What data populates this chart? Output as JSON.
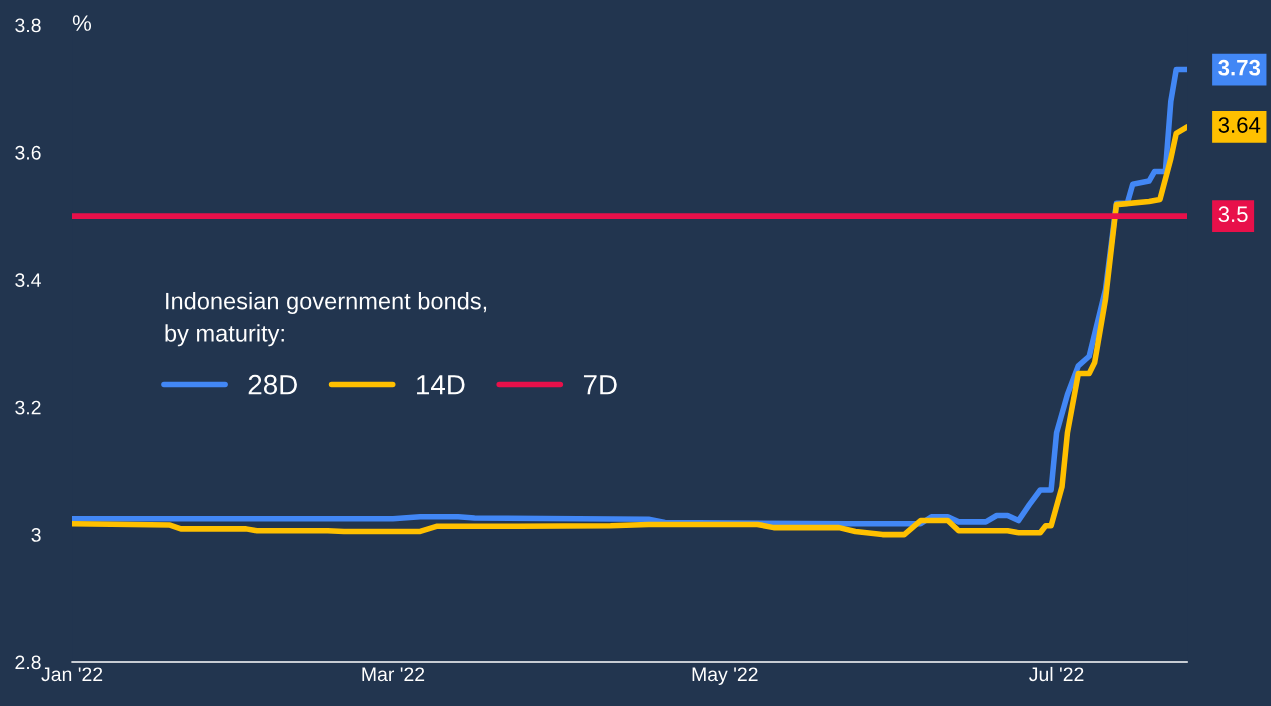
{
  "chart_data": {
    "type": "line",
    "ylabel": "%",
    "legend_title": "Indonesian government bonds,\nby maturity:",
    "legend": "left",
    "grid": false,
    "marker": "none",
    "line_style": "solid",
    "xlim": [
      "2022-01-01",
      "2022-07-25"
    ],
    "xticks": [
      {
        "value": "2022-01-01",
        "label": "Jan '22"
      },
      {
        "value": "2022-03-01",
        "label": "Mar '22"
      },
      {
        "value": "2022-05-01",
        "label": "May '22"
      },
      {
        "value": "2022-07-01",
        "label": "Jul '22"
      }
    ],
    "ylim": [
      2.8,
      3.8
    ],
    "yticks": [
      2.8,
      3,
      3.2,
      3.4,
      3.6,
      3.8
    ],
    "series": [
      {
        "name": "28D",
        "color": "#4287f5",
        "x": [
          "2022-01-01",
          "2022-03-01",
          "2022-03-06",
          "2022-03-13",
          "2022-03-16",
          "2022-04-17",
          "2022-04-20",
          "2022-05-24",
          "2022-06-06",
          "2022-06-08",
          "2022-06-11",
          "2022-06-13",
          "2022-06-18",
          "2022-06-20",
          "2022-06-22",
          "2022-06-24",
          "2022-06-26",
          "2022-06-28",
          "2022-06-30",
          "2022-07-01",
          "2022-07-03",
          "2022-07-05",
          "2022-07-07",
          "2022-07-10",
          "2022-07-12",
          "2022-07-14",
          "2022-07-15",
          "2022-07-18",
          "2022-07-19",
          "2022-07-21",
          "2022-07-22",
          "2022-07-23",
          "2022-07-25"
        ],
        "values": [
          3.025,
          3.025,
          3.028,
          3.028,
          3.026,
          3.024,
          3.019,
          3.017,
          3.017,
          3.028,
          3.028,
          3.02,
          3.02,
          3.03,
          3.03,
          3.022,
          3.047,
          3.07,
          3.07,
          3.16,
          3.22,
          3.265,
          3.28,
          3.385,
          3.52,
          3.52,
          3.55,
          3.555,
          3.57,
          3.57,
          3.68,
          3.73,
          3.73
        ],
        "value_labels": [
          null,
          null,
          null,
          null,
          null,
          null,
          null,
          null,
          null,
          null,
          null,
          null,
          null,
          null,
          null,
          null,
          null,
          null,
          null,
          null,
          null,
          null,
          null,
          null,
          null,
          null,
          null,
          null,
          null,
          null,
          null,
          null,
          "3.73"
        ]
      },
      {
        "name": "14D",
        "color": "#ffc000",
        "x": [
          "2022-01-01",
          "2022-01-19",
          "2022-01-21",
          "2022-02-02",
          "2022-02-04",
          "2022-02-17",
          "2022-02-20",
          "2022-03-06",
          "2022-03-09",
          "2022-03-24",
          "2022-04-10",
          "2022-04-17",
          "2022-05-07",
          "2022-05-10",
          "2022-05-22",
          "2022-05-25",
          "2022-05-30",
          "2022-06-03",
          "2022-06-06",
          "2022-06-11",
          "2022-06-13",
          "2022-06-22",
          "2022-06-24",
          "2022-06-28",
          "2022-06-29",
          "2022-06-30",
          "2022-07-02",
          "2022-07-03",
          "2022-07-05",
          "2022-07-07",
          "2022-07-08",
          "2022-07-10",
          "2022-07-12",
          "2022-07-18",
          "2022-07-20",
          "2022-07-22",
          "2022-07-23",
          "2022-07-25"
        ],
        "values": [
          3.017,
          3.015,
          3.009,
          3.009,
          3.006,
          3.006,
          3.005,
          3.005,
          3.013,
          3.013,
          3.014,
          3.016,
          3.016,
          3.011,
          3.011,
          3.005,
          3.0,
          3.0,
          3.022,
          3.022,
          3.006,
          3.006,
          3.003,
          3.003,
          3.014,
          3.014,
          3.075,
          3.16,
          3.253,
          3.253,
          3.27,
          3.37,
          3.518,
          3.523,
          3.526,
          3.59,
          3.63,
          3.64
        ],
        "value_labels": [
          null,
          null,
          null,
          null,
          null,
          null,
          null,
          null,
          null,
          null,
          null,
          null,
          null,
          null,
          null,
          null,
          null,
          null,
          null,
          null,
          null,
          null,
          null,
          null,
          null,
          null,
          null,
          null,
          null,
          null,
          null,
          null,
          null,
          null,
          null,
          null,
          null,
          "3.64"
        ]
      },
      {
        "name": "7D",
        "color": "#e8104a",
        "x": [
          "2022-01-01",
          "2022-07-25"
        ],
        "values": [
          3.5,
          3.5
        ],
        "value_labels": [
          null,
          "3.5"
        ]
      }
    ]
  }
}
